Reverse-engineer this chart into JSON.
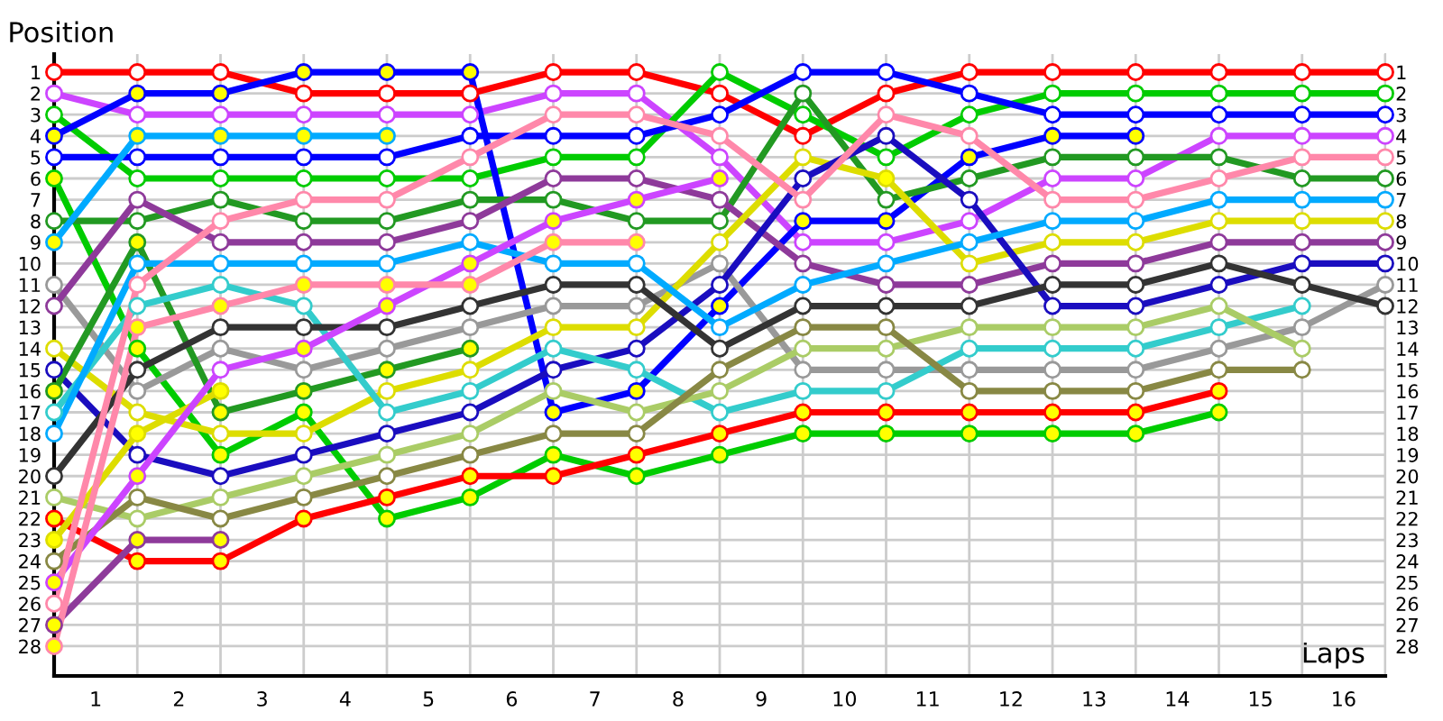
{
  "chart_data": {
    "type": "line",
    "ylabel": "Position",
    "xlabel": "Laps",
    "x": [
      0,
      1,
      2,
      3,
      4,
      5,
      6,
      7,
      8,
      9,
      10,
      11,
      12,
      13,
      14,
      15,
      16
    ],
    "xlim": [
      0,
      16
    ],
    "xticks": [
      {
        "value": 0,
        "label": null
      },
      {
        "value": 1,
        "label": null
      },
      {
        "value": 2,
        "label": null
      },
      {
        "value": 3,
        "label": null
      },
      {
        "value": 4,
        "label": null
      },
      {
        "value": 5,
        "label": null
      },
      {
        "value": 6,
        "label": null
      },
      {
        "value": 7,
        "label": null
      },
      {
        "value": 8,
        "label": null
      },
      {
        "value": 9,
        "label": null
      },
      {
        "value": 10,
        "label": null
      },
      {
        "value": 11,
        "label": null
      },
      {
        "value": 12,
        "label": null
      },
      {
        "value": 13,
        "label": null
      },
      {
        "value": 14,
        "label": null
      },
      {
        "value": 15,
        "label": null
      },
      {
        "value": 16,
        "label": null
      },
      {
        "value": 0.5,
        "label": "1"
      },
      {
        "value": 1.5,
        "label": "2"
      },
      {
        "value": 2.5,
        "label": "3"
      },
      {
        "value": 3.5,
        "label": "4"
      },
      {
        "value": 4.5,
        "label": "5"
      },
      {
        "value": 5.5,
        "label": "6"
      },
      {
        "value": 6.5,
        "label": "7"
      },
      {
        "value": 7.5,
        "label": "8"
      },
      {
        "value": 8.5,
        "label": "9"
      },
      {
        "value": 9.5,
        "label": "10"
      },
      {
        "value": 10.5,
        "label": "11"
      },
      {
        "value": 11.5,
        "label": "12"
      },
      {
        "value": 12.5,
        "label": "13"
      },
      {
        "value": 13.5,
        "label": "14"
      },
      {
        "value": 14.5,
        "label": "15"
      },
      {
        "value": 15.5,
        "label": "16"
      }
    ],
    "ylim": [
      29.4,
      0.15
    ],
    "yticks": [
      1,
      2,
      3,
      4,
      5,
      6,
      7,
      8,
      9,
      10,
      11,
      12,
      13,
      14,
      15,
      16,
      17,
      18,
      19,
      20,
      21,
      22,
      23,
      24,
      25,
      26,
      27,
      28
    ],
    "y2lim": [
      29.4,
      0.15
    ],
    "y2ticks": [
      1,
      2,
      3,
      4,
      5,
      6,
      7,
      8,
      9,
      10,
      11,
      12,
      13,
      14,
      15,
      16,
      17,
      18,
      19,
      20,
      21,
      22,
      23,
      24,
      25,
      26,
      27,
      28
    ],
    "grid": true,
    "marker": "circle",
    "line_style": "solid",
    "series": [
      {
        "color": "#ff0000",
        "values": [
          1,
          1,
          1,
          2,
          2,
          2,
          1,
          1,
          2,
          4,
          2,
          1,
          1,
          1,
          1,
          1,
          1
        ],
        "colors": [
          "#ffffff",
          "#ffffff",
          "#ffffff",
          "#ffffff",
          "#ffffff",
          "#ffffff",
          "#ffffff",
          "#ffffff",
          "#ffffff",
          "#ffffff",
          "#ffffff",
          "#ffffff",
          "#ffffff",
          "#ffffff",
          "#ffffff",
          "#ffffff",
          "#ffffff"
        ]
      },
      {
        "color": "#cc44ff",
        "values": [
          2,
          3,
          3,
          3,
          3,
          3,
          2,
          2,
          5,
          9,
          9,
          8,
          6,
          6,
          4,
          4,
          4
        ],
        "colors": [
          "#ffffff",
          "#ffffff",
          "#ffffff",
          "#ffffff",
          "#ffffff",
          "#ffffff",
          "#ffffff",
          "#ffffff",
          "#ffffff",
          "#ffffff",
          "#ffffff",
          "#ffffff",
          "#ffffff",
          "#ffffff",
          "#ffffff",
          "#ffffff",
          "#ffffff"
        ]
      },
      {
        "color": "#00cc00",
        "values": [
          3,
          6,
          6,
          6,
          6,
          6,
          5,
          5,
          1,
          3,
          5,
          3,
          2,
          2,
          2,
          2,
          2
        ],
        "colors": [
          "#ffffff",
          "#ffffff",
          "#ffffff",
          "#ffffff",
          "#ffffff",
          "#ffffff",
          "#ffffff",
          "#ffffff",
          "#ffffff",
          "#ffffff",
          "#ffffff",
          "#ffffff",
          "#ffffff",
          "#ffffff",
          "#ffffff",
          "#ffffff",
          "#ffffff"
        ]
      },
      {
        "color": "#0000ff",
        "values": [
          4,
          2,
          2,
          1,
          1,
          1,
          17,
          16,
          12,
          8,
          8,
          5,
          4,
          4,
          null,
          null,
          null
        ],
        "colors": [
          "#ffff00",
          "#ffff00",
          "#ffff00",
          "#ffff00",
          "#ffff00",
          "#ffff00",
          "#ffff00",
          "#ffff00",
          "#ffff00",
          "#ffff00",
          "#ffff00",
          "#ffff00",
          "#ffff00",
          "#ffff00",
          null,
          null,
          null
        ]
      },
      {
        "color": "#0000ff",
        "values": [
          5,
          5,
          5,
          5,
          5,
          4,
          4,
          4,
          3,
          1,
          1,
          2,
          3,
          3,
          3,
          3,
          3
        ],
        "colors": [
          "#ffffff",
          "#ffffff",
          "#ffffff",
          "#ffffff",
          "#ffffff",
          "#ffffff",
          "#ffffff",
          "#ffffff",
          "#ffffff",
          "#ffffff",
          "#ffffff",
          "#ffffff",
          "#ffffff",
          "#ffffff",
          "#ffffff",
          "#ffffff",
          "#ffffff"
        ]
      },
      {
        "color": "#00cc00",
        "values": [
          6,
          14,
          19,
          17,
          22,
          21,
          19,
          20,
          19,
          18,
          18,
          18,
          18,
          18,
          17,
          null,
          null
        ],
        "colors": [
          "#ffff00",
          "#ffff00",
          "#ffff00",
          "#ffff00",
          "#ffff00",
          "#ffff00",
          "#ffff00",
          "#ffff00",
          "#ffff00",
          "#ffff00",
          "#ffff00",
          "#ffff00",
          "#ffff00",
          "#ffff00",
          "#ffff00",
          null,
          null
        ]
      },
      {
        "color": "#229922",
        "values": [
          8,
          8,
          7,
          8,
          8,
          7,
          7,
          8,
          8,
          2,
          7,
          6,
          5,
          5,
          5,
          6,
          6
        ],
        "colors": [
          "#ffffff",
          "#ffffff",
          "#ffffff",
          "#ffffff",
          "#ffffff",
          "#ffffff",
          "#ffffff",
          "#ffffff",
          "#ffffff",
          "#ffffff",
          "#ffffff",
          "#ffffff",
          "#ffffff",
          "#ffffff",
          "#ffffff",
          "#ffffff",
          "#ffffff"
        ]
      },
      {
        "color": "#00aaff",
        "values": [
          9,
          4,
          4,
          4,
          4,
          null,
          null,
          null,
          null,
          null,
          null,
          null,
          null,
          null,
          null,
          null,
          null
        ],
        "colors": [
          "#ffff00",
          "#ffff00",
          "#ffff00",
          "#ffff00",
          "#ffff00",
          null,
          null,
          null,
          null,
          null,
          null,
          null,
          null,
          null,
          null,
          null,
          null
        ]
      },
      {
        "color": "#999999",
        "values": [
          11,
          16,
          14,
          15,
          14,
          13,
          12,
          12,
          10,
          15,
          15,
          15,
          15,
          15,
          14,
          13,
          11
        ],
        "colors": [
          "#ffffff",
          "#ffffff",
          "#ffffff",
          "#ffffff",
          "#ffffff",
          "#ffffff",
          "#ffffff",
          "#ffffff",
          "#ffffff",
          "#ffffff",
          "#ffffff",
          "#ffffff",
          "#ffffff",
          "#ffffff",
          "#ffffff",
          "#ffffff",
          "#ffffff"
        ]
      },
      {
        "color": "#8e3a9a",
        "values": [
          12,
          7,
          9,
          9,
          9,
          8,
          6,
          6,
          7,
          10,
          11,
          11,
          10,
          10,
          9,
          9,
          9
        ],
        "colors": [
          "#ffffff",
          "#ffffff",
          "#ffffff",
          "#ffffff",
          "#ffffff",
          "#ffffff",
          "#ffffff",
          "#ffffff",
          "#ffffff",
          "#ffffff",
          "#ffffff",
          "#ffffff",
          "#ffffff",
          "#ffffff",
          "#ffffff",
          "#ffffff",
          "#ffffff"
        ]
      },
      {
        "color": "#dddd00",
        "values": [
          14,
          17,
          18,
          18,
          16,
          15,
          13,
          13,
          9,
          5,
          6,
          10,
          9,
          9,
          8,
          8,
          8
        ],
        "colors": [
          "#ffffff",
          "#ffffff",
          "#ffffff",
          "#ffffff",
          "#ffffff",
          "#ffffff",
          "#ffffff",
          "#ffffff",
          "#ffffff",
          "#ffffff",
          "#ffff00",
          "#ffffff",
          "#ffffff",
          "#ffffff",
          "#ffffff",
          "#ffffff",
          "#ffffff"
        ]
      },
      {
        "color": "#1a0dbf",
        "values": [
          15,
          19,
          20,
          19,
          18,
          17,
          15,
          14,
          11,
          6,
          4,
          7,
          12,
          12,
          11,
          10,
          10
        ],
        "colors": [
          "#ffffff",
          "#ffffff",
          "#ffffff",
          "#ffffff",
          "#ffffff",
          "#ffffff",
          "#ffffff",
          "#ffffff",
          "#ffffff",
          "#ffffff",
          "#ffffff",
          "#ffffff",
          "#ffffff",
          "#ffffff",
          "#ffffff",
          "#ffffff",
          "#ffffff"
        ]
      },
      {
        "color": "#229922",
        "values": [
          16,
          9,
          17,
          16,
          15,
          14,
          null,
          null,
          null,
          null,
          null,
          null,
          null,
          null,
          null,
          null,
          null
        ],
        "colors": [
          "#ffff00",
          "#ffff00",
          "#ffff00",
          "#ffff00",
          "#ffff00",
          "#ffff00",
          null,
          null,
          null,
          null,
          null,
          null,
          null,
          null,
          null,
          null,
          null
        ]
      },
      {
        "color": "#33cccc",
        "values": [
          17,
          12,
          11,
          12,
          17,
          16,
          14,
          15,
          17,
          16,
          16,
          14,
          14,
          14,
          13,
          12,
          null
        ],
        "colors": [
          "#ffffff",
          "#ffffff",
          "#ffffff",
          "#ffffff",
          "#ffffff",
          "#ffffff",
          "#ffffff",
          "#ffffff",
          "#ffffff",
          "#ffffff",
          "#ffffff",
          "#ffffff",
          "#ffffff",
          "#ffffff",
          "#ffffff",
          "#ffffff",
          null
        ]
      },
      {
        "color": "#00aaff",
        "values": [
          18,
          10,
          10,
          10,
          10,
          9,
          10,
          10,
          13,
          11,
          10,
          9,
          8,
          8,
          7,
          7,
          7
        ],
        "colors": [
          "#ffffff",
          "#ffffff",
          "#ffffff",
          "#ffffff",
          "#ffffff",
          "#ffffff",
          "#ffffff",
          "#ffffff",
          "#ffffff",
          "#ffffff",
          "#ffffff",
          "#ffffff",
          "#ffffff",
          "#ffffff",
          "#ffffff",
          "#ffffff",
          "#ffffff"
        ]
      },
      {
        "color": "#333333",
        "values": [
          20,
          15,
          13,
          13,
          13,
          12,
          11,
          11,
          14,
          12,
          12,
          12,
          11,
          11,
          10,
          11,
          12
        ],
        "colors": [
          "#ffffff",
          "#ffffff",
          "#ffffff",
          "#ffffff",
          "#ffffff",
          "#ffffff",
          "#ffffff",
          "#ffffff",
          "#ffffff",
          "#ffffff",
          "#ffffff",
          "#ffffff",
          "#ffffff",
          "#ffffff",
          "#ffffff",
          "#ffffff",
          "#ffffff"
        ]
      },
      {
        "color": "#aacc66",
        "values": [
          21,
          22,
          21,
          20,
          19,
          18,
          16,
          17,
          16,
          14,
          14,
          13,
          13,
          13,
          12,
          14,
          null
        ],
        "colors": [
          "#ffffff",
          "#ffffff",
          "#ffffff",
          "#ffffff",
          "#ffffff",
          "#ffffff",
          "#ffffff",
          "#ffffff",
          "#ffffff",
          "#ffffff",
          "#ffffff",
          "#ffffff",
          "#ffffff",
          "#ffffff",
          "#ffffff",
          "#ffffff",
          null
        ]
      },
      {
        "color": "#ff0000",
        "values": [
          22,
          24,
          24,
          22,
          21,
          20,
          20,
          19,
          18,
          17,
          17,
          17,
          17,
          17,
          16,
          null,
          null
        ],
        "colors": [
          "#ffff00",
          "#ffff00",
          "#ffff00",
          "#ffff00",
          "#ffff00",
          "#ffff00",
          "#ffff00",
          "#ffff00",
          "#ffff00",
          "#ffff00",
          "#ffff00",
          "#ffff00",
          "#ffff00",
          "#ffff00",
          "#ffff00",
          null,
          null
        ]
      },
      {
        "color": "#dddd00",
        "values": [
          23,
          18,
          16,
          null,
          null,
          null,
          null,
          null,
          null,
          null,
          null,
          null,
          null,
          null,
          null,
          null,
          null
        ],
        "colors": [
          "#ffff00",
          "#ffff00",
          "#ffff00",
          null,
          null,
          null,
          null,
          null,
          null,
          null,
          null,
          null,
          null,
          null,
          null,
          null,
          null
        ]
      },
      {
        "color": "#888844",
        "values": [
          24,
          21,
          22,
          21,
          20,
          19,
          18,
          18,
          15,
          13,
          13,
          16,
          16,
          16,
          15,
          15,
          null
        ],
        "colors": [
          "#ffffff",
          "#ffffff",
          "#ffffff",
          "#ffffff",
          "#ffffff",
          "#ffffff",
          "#ffffff",
          "#ffffff",
          "#ffffff",
          "#ffffff",
          "#ffffff",
          "#ffffff",
          "#ffffff",
          "#ffffff",
          "#ffffff",
          "#ffffff",
          null
        ]
      },
      {
        "color": "#cc44ff",
        "values": [
          25,
          20,
          15,
          14,
          12,
          10,
          8,
          7,
          6,
          null,
          null,
          null,
          null,
          null,
          null,
          null,
          null
        ],
        "colors": [
          "#ffff00",
          "#ffff00",
          "#ffffff",
          "#ffff00",
          "#ffff00",
          "#ffff00",
          "#ffff00",
          "#ffff00",
          "#ffff00",
          null,
          null,
          null,
          null,
          null,
          null,
          null,
          null
        ]
      },
      {
        "color": "#ff88aa",
        "values": [
          26,
          11,
          8,
          7,
          7,
          5,
          3,
          3,
          4,
          7,
          3,
          4,
          7,
          7,
          6,
          5,
          5
        ],
        "colors": [
          "#ffffff",
          "#ffffff",
          "#ffffff",
          "#ffffff",
          "#ffffff",
          "#ffffff",
          "#ffffff",
          "#ffffff",
          "#ffffff",
          "#ffffff",
          "#ffffff",
          "#ffffff",
          "#ffffff",
          "#ffffff",
          "#ffffff",
          "#ffffff",
          "#ffffff"
        ]
      },
      {
        "color": "#8e3a9a",
        "values": [
          27,
          23,
          23,
          null,
          null,
          null,
          null,
          null,
          null,
          null,
          null,
          null,
          null,
          null,
          null,
          null,
          null
        ],
        "colors": [
          "#ffff00",
          "#ffff00",
          "#ffff00",
          null,
          null,
          null,
          null,
          null,
          null,
          null,
          null,
          null,
          null,
          null,
          null,
          null,
          null
        ]
      },
      {
        "color": "#ff88aa",
        "values": [
          28,
          13,
          12,
          11,
          11,
          11,
          9,
          9,
          null,
          null,
          null,
          null,
          null,
          null,
          null,
          null,
          null
        ],
        "colors": [
          "#ffff00",
          "#ffff00",
          "#ffff00",
          "#ffff00",
          "#ffff00",
          "#ffff00",
          "#ffff00",
          "#ffff00",
          null,
          null,
          null,
          null,
          null,
          null,
          null,
          null,
          null
        ]
      }
    ]
  }
}
